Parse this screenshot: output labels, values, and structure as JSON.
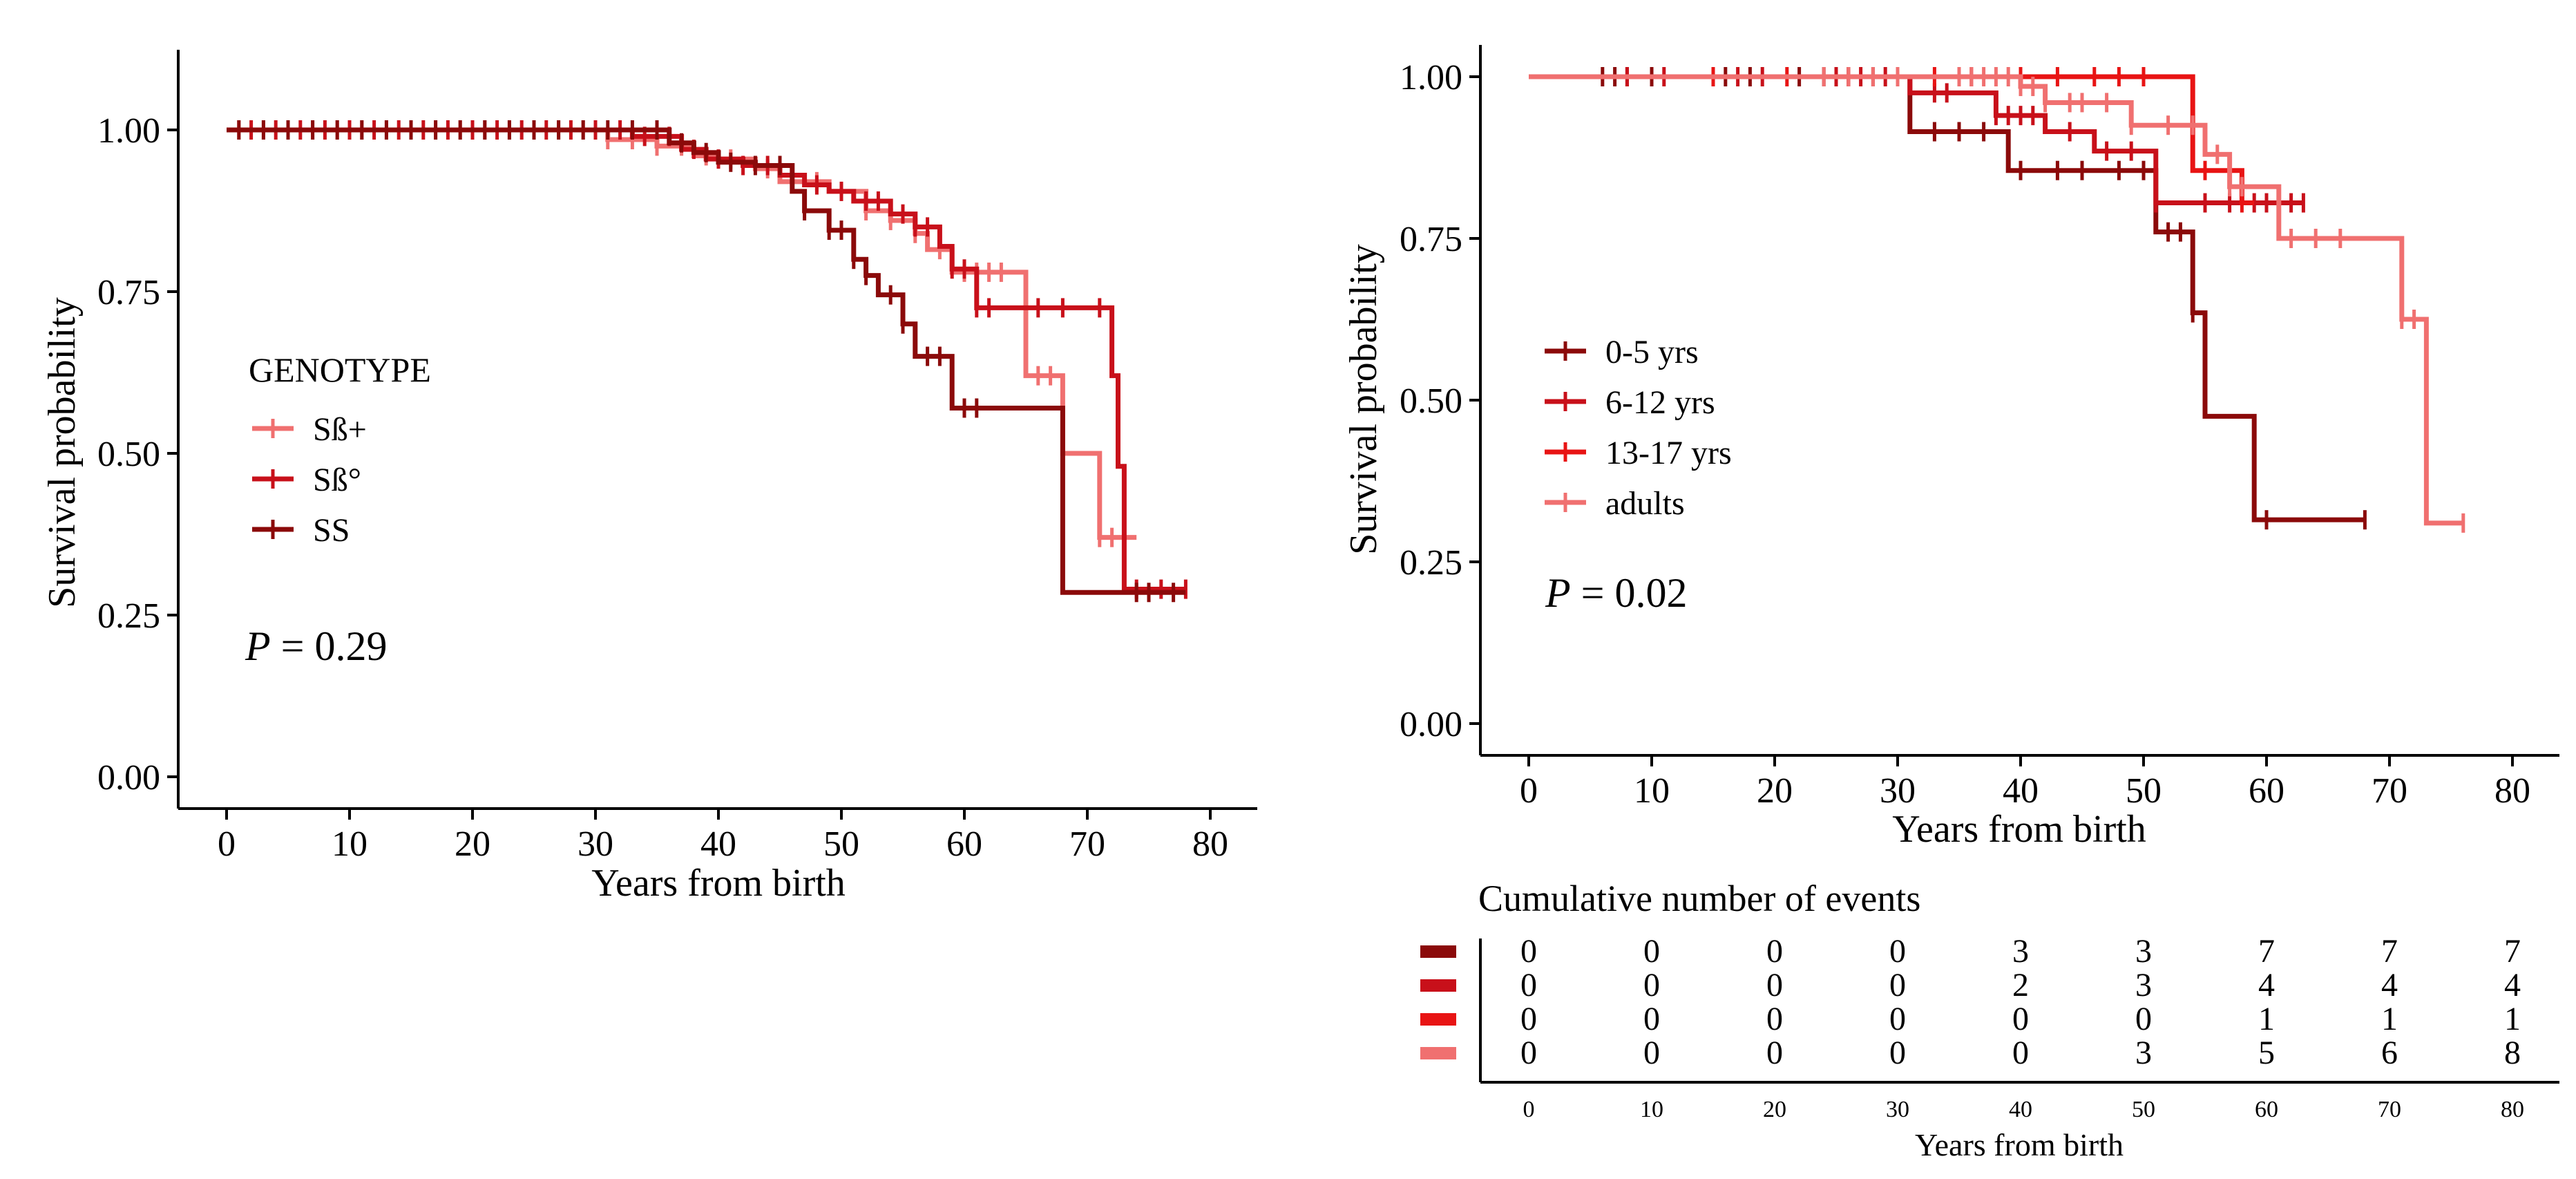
{
  "chart_data": [
    {
      "type": "line",
      "subtype": "kaplan-meier",
      "title": "",
      "xlabel": "Years from birth",
      "ylabel": "Survival probability",
      "xlim": [
        0,
        80
      ],
      "ylim": [
        0,
        1
      ],
      "xticks": [
        "0",
        "10",
        "20",
        "30",
        "40",
        "50",
        "60",
        "70",
        "80"
      ],
      "yticks": [
        "0.00",
        "0.25",
        "0.50",
        "0.75",
        "1.00"
      ],
      "legend_title": "GENOTYPE",
      "legend_position": "left",
      "p_label": "P",
      "p_value": " = 0.29",
      "grid": false,
      "series": [
        {
          "name": "Sß+",
          "color": "#f07070",
          "steps": [
            [
              0,
              1
            ],
            [
              31,
              0.985
            ],
            [
              35,
              0.975
            ],
            [
              38,
              0.96
            ],
            [
              40,
              0.955
            ],
            [
              43,
              0.94
            ],
            [
              45,
              0.92
            ],
            [
              49,
              0.905
            ],
            [
              52,
              0.875
            ],
            [
              54,
              0.86
            ],
            [
              56,
              0.84
            ],
            [
              57,
              0.815
            ],
            [
              59,
              0.78
            ],
            [
              65,
              0.62
            ],
            [
              68,
              0.5
            ],
            [
              71,
              0.37
            ],
            [
              74,
              0.37
            ]
          ],
          "censor": [
            1,
            3,
            5,
            7,
            9,
            11,
            13,
            15,
            17,
            19,
            21,
            23,
            25,
            27,
            29,
            31,
            33,
            35,
            37,
            39,
            41,
            44,
            46,
            48,
            50,
            52,
            54,
            56,
            58,
            60,
            61,
            62,
            63,
            66,
            67,
            71,
            72,
            73
          ]
        },
        {
          "name": "Sß°",
          "color": "#c8101a",
          "steps": [
            [
              0,
              1
            ],
            [
              33,
              0.99
            ],
            [
              37,
              0.97
            ],
            [
              39,
              0.955
            ],
            [
              42,
              0.945
            ],
            [
              45,
              0.93
            ],
            [
              47,
              0.915
            ],
            [
              49,
              0.905
            ],
            [
              51,
              0.89
            ],
            [
              54,
              0.87
            ],
            [
              56,
              0.85
            ],
            [
              58,
              0.82
            ],
            [
              59,
              0.785
            ],
            [
              61,
              0.725
            ],
            [
              72,
              0.62
            ],
            [
              72.5,
              0.48
            ],
            [
              73,
              0.29
            ],
            [
              78,
              0.29
            ]
          ],
          "censor": [
            2,
            4,
            6,
            8,
            10,
            12,
            14,
            16,
            18,
            20,
            22,
            24,
            26,
            28,
            30,
            32,
            34,
            36,
            38,
            40,
            42,
            44,
            46,
            48,
            50,
            52,
            53,
            55,
            56,
            57,
            59,
            60,
            61,
            62,
            66,
            68,
            71,
            74,
            76,
            78
          ]
        },
        {
          "name": "SS",
          "color": "#8b0a0a",
          "steps": [
            [
              0,
              1
            ],
            [
              36,
              0.98
            ],
            [
              38,
              0.965
            ],
            [
              40,
              0.95
            ],
            [
              43,
              0.945
            ],
            [
              46,
              0.905
            ],
            [
              47,
              0.875
            ],
            [
              49,
              0.845
            ],
            [
              51,
              0.8
            ],
            [
              52,
              0.775
            ],
            [
              53,
              0.745
            ],
            [
              55,
              0.7
            ],
            [
              56,
              0.65
            ],
            [
              59,
              0.57
            ],
            [
              68,
              0.285
            ],
            [
              78,
              0.285
            ]
          ],
          "censor": [
            1,
            3,
            5,
            7,
            9,
            11,
            13,
            15,
            17,
            19,
            21,
            23,
            25,
            27,
            29,
            31,
            33,
            35,
            37,
            39,
            41,
            43,
            45,
            47,
            49,
            50,
            51,
            52,
            54,
            55,
            57,
            58,
            60,
            61,
            74,
            75,
            77
          ]
        }
      ]
    },
    {
      "type": "line",
      "subtype": "kaplan-meier",
      "title": "",
      "xlabel": "Years from birth",
      "ylabel": "Survival probability",
      "xlim": [
        0,
        80
      ],
      "ylim": [
        0,
        1
      ],
      "xticks": [
        "0",
        "10",
        "20",
        "30",
        "40",
        "50",
        "60",
        "70",
        "80"
      ],
      "yticks": [
        "0.00",
        "0.25",
        "0.50",
        "0.75",
        "1.00"
      ],
      "legend_position": "left",
      "p_label": "P",
      "p_value": " = 0.02",
      "grid": false,
      "series": [
        {
          "name": "0-5 yrs",
          "color": "#8b0a0a",
          "steps": [
            [
              0,
              1
            ],
            [
              31,
              0.915
            ],
            [
              39,
              0.855
            ],
            [
              51,
              0.76
            ],
            [
              54,
              0.635
            ],
            [
              55,
              0.475
            ],
            [
              59,
              0.315
            ],
            [
              68,
              0.315
            ]
          ],
          "censor": [
            6,
            7,
            8,
            10,
            15,
            16,
            18,
            22,
            24,
            26,
            28,
            30,
            33,
            35,
            37,
            40,
            43,
            45,
            48,
            50,
            52,
            53,
            54,
            60,
            68
          ]
        },
        {
          "name": "6-12 yrs",
          "color": "#c8101a",
          "steps": [
            [
              0,
              1
            ],
            [
              31,
              0.975
            ],
            [
              38,
              0.94
            ],
            [
              42,
              0.915
            ],
            [
              46,
              0.885
            ],
            [
              51,
              0.805
            ],
            [
              63,
              0.805
            ]
          ],
          "censor": [
            8,
            11,
            17,
            19,
            25,
            27,
            29,
            33,
            34,
            38,
            39,
            40,
            41,
            44,
            47,
            49,
            51,
            55,
            57,
            59,
            60,
            61,
            62,
            63
          ]
        },
        {
          "name": "13-17 yrs",
          "color": "#e81414",
          "steps": [
            [
              0,
              1
            ],
            [
              54,
              0.855
            ],
            [
              58,
              0.805
            ],
            [
              59,
              0.805
            ]
          ],
          "censor": [
            15,
            21,
            26,
            33,
            36,
            40,
            43,
            46,
            48,
            50,
            55,
            57,
            58
          ]
        },
        {
          "name": "adults",
          "color": "#f07070",
          "steps": [
            [
              0,
              1
            ],
            [
              40,
              0.985
            ],
            [
              42,
              0.96
            ],
            [
              49,
              0.925
            ],
            [
              55,
              0.88
            ],
            [
              57,
              0.83
            ],
            [
              61,
              0.75
            ],
            [
              71,
              0.625
            ],
            [
              73,
              0.31
            ],
            [
              76,
              0.31
            ]
          ],
          "censor": [
            24,
            26,
            28,
            30,
            35,
            36,
            37,
            38,
            39,
            40,
            41,
            42,
            44,
            45,
            47,
            49,
            52,
            54,
            56,
            57,
            58,
            62,
            64,
            66,
            71,
            72,
            76
          ]
        }
      ],
      "risk_table": {
        "title": "Cumulative number of events",
        "xlabel": "Years from birth",
        "x": [
          "0",
          "10",
          "20",
          "30",
          "40",
          "50",
          "60",
          "70",
          "80"
        ],
        "rows": [
          {
            "color": "#8b0a0a",
            "values": [
              "0",
              "0",
              "0",
              "0",
              "3",
              "3",
              "7",
              "7",
              "7"
            ]
          },
          {
            "color": "#c8101a",
            "values": [
              "0",
              "0",
              "0",
              "0",
              "2",
              "3",
              "4",
              "4",
              "4"
            ]
          },
          {
            "color": "#e81414",
            "values": [
              "0",
              "0",
              "0",
              "0",
              "0",
              "0",
              "1",
              "1",
              "1"
            ]
          },
          {
            "color": "#f07070",
            "values": [
              "0",
              "0",
              "0",
              "0",
              "0",
              "3",
              "5",
              "6",
              "8"
            ]
          }
        ]
      }
    }
  ]
}
